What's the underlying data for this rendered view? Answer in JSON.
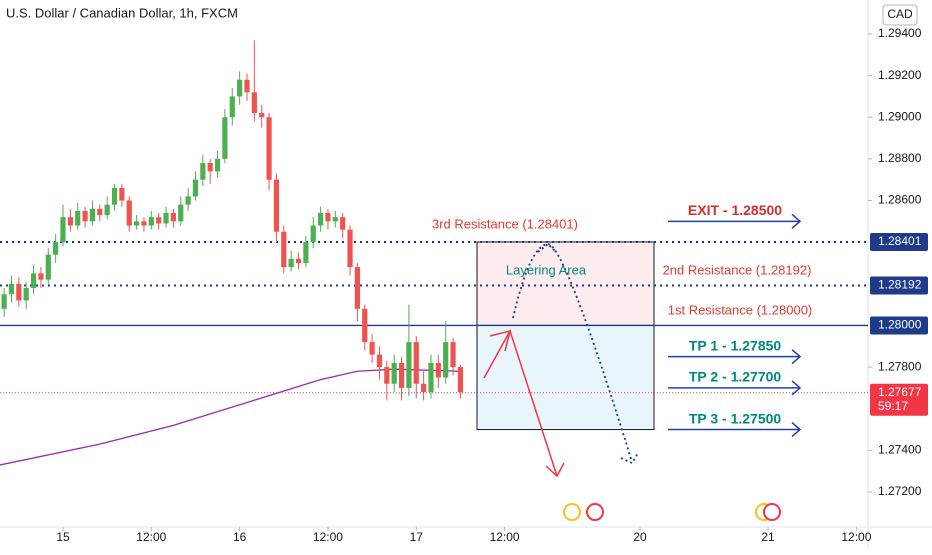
{
  "chart_data": {
    "type": "candlestick",
    "title": "U.S. Dollar / Canadian Dollar, 1h, FXCM",
    "currency": "CAD",
    "up_color": "#4caf50",
    "down_color": "#ef5350",
    "xlim": [
      -8.56,
      109.38
    ],
    "ylim": [
      1.27032,
      1.29563
    ],
    "xticks": [
      {
        "value": 0,
        "label": "15"
      },
      {
        "value": 12,
        "label": "12:00"
      },
      {
        "value": 24,
        "label": "16"
      },
      {
        "value": 36,
        "label": "12:00"
      },
      {
        "value": 48,
        "label": "17"
      },
      {
        "value": 60,
        "label": "12:00"
      },
      {
        "value": 78.4,
        "label": "20"
      },
      {
        "value": 95.8,
        "label": "21"
      },
      {
        "value": 107.8,
        "label": "12:00"
      }
    ],
    "yticks": [
      {
        "value": 1.272,
        "label": "1.27200"
      },
      {
        "value": 1.274,
        "label": "1.27400"
      },
      {
        "value": 1.278,
        "label": "1.27800"
      },
      {
        "value": 1.286,
        "label": "1.28600"
      },
      {
        "value": 1.288,
        "label": "1.28800"
      },
      {
        "value": 1.29,
        "label": "1.29000"
      },
      {
        "value": 1.292,
        "label": "1.29200"
      },
      {
        "value": 1.294,
        "label": "1.29400"
      }
    ],
    "x": [
      -8,
      -7,
      -6,
      -5,
      -4,
      -3,
      -2,
      -1,
      0,
      1,
      2,
      3,
      4,
      5,
      6,
      7,
      8,
      9,
      10,
      11,
      12,
      13,
      14,
      15,
      16,
      17,
      18,
      19,
      20,
      21,
      22,
      23,
      24,
      25,
      26,
      27,
      28,
      29,
      30,
      31,
      32,
      33,
      34,
      35,
      36,
      37,
      38,
      39,
      40,
      41,
      42,
      43,
      44,
      45,
      46,
      47,
      48,
      49,
      50,
      51,
      52,
      53,
      54
    ],
    "open": [
      1.2808,
      1.2815,
      1.282,
      1.2812,
      1.2818,
      1.2825,
      1.2822,
      1.2834,
      1.284,
      1.2852,
      1.2848,
      1.2855,
      1.285,
      1.2856,
      1.2853,
      1.2858,
      1.2866,
      1.286,
      1.2848,
      1.285,
      1.2848,
      1.2852,
      1.2849,
      1.2854,
      1.285,
      1.2858,
      1.2862,
      1.287,
      1.2878,
      1.2874,
      1.288,
      1.29,
      1.291,
      1.2918,
      1.2912,
      1.2902,
      1.29,
      1.287,
      1.2845,
      1.2828,
      1.2832,
      1.283,
      1.284,
      1.2848,
      1.2854,
      1.285,
      1.2852,
      1.2846,
      1.2828,
      1.2808,
      1.2792,
      1.2786,
      1.278,
      1.2772,
      1.2782,
      1.277,
      1.2792,
      1.2772,
      1.2768,
      1.2782,
      1.2775,
      1.2792,
      1.278
    ],
    "high": [
      1.2818,
      1.2824,
      1.2823,
      1.2821,
      1.2829,
      1.2828,
      1.2837,
      1.2844,
      1.2858,
      1.2856,
      1.2859,
      1.2857,
      1.286,
      1.2858,
      1.2862,
      1.2868,
      1.2868,
      1.2862,
      1.2853,
      1.2852,
      1.2855,
      1.2854,
      1.2857,
      1.2856,
      1.2862,
      1.2866,
      1.2874,
      1.2882,
      1.288,
      1.2884,
      1.2904,
      1.2914,
      1.2922,
      1.2921,
      1.2937,
      1.2906,
      1.2902,
      1.2873,
      1.2848,
      1.2836,
      1.2835,
      1.2843,
      1.2852,
      1.2857,
      1.2856,
      1.2855,
      1.2854,
      1.2848,
      1.283,
      1.281,
      1.2796,
      1.279,
      1.2783,
      1.2786,
      1.2785,
      1.281,
      1.2795,
      1.2778,
      1.2786,
      1.2786,
      1.2802,
      1.2794,
      1.2781
    ],
    "low": [
      1.2804,
      1.2811,
      1.2809,
      1.2808,
      1.2815,
      1.2818,
      1.282,
      1.283,
      1.2838,
      1.2845,
      1.2846,
      1.2847,
      1.2848,
      1.285,
      1.2851,
      1.2855,
      1.2857,
      1.2845,
      1.2846,
      1.2845,
      1.2846,
      1.2846,
      1.2847,
      1.2847,
      1.2848,
      1.2855,
      1.286,
      1.2867,
      1.2868,
      1.2871,
      1.2878,
      1.2896,
      1.2906,
      1.2908,
      1.2898,
      1.2895,
      1.2865,
      1.284,
      1.2825,
      1.2826,
      1.2827,
      1.2828,
      1.2837,
      1.2845,
      1.2846,
      1.2847,
      1.2842,
      1.2824,
      1.2802,
      1.2788,
      1.2782,
      1.2774,
      1.2764,
      1.2768,
      1.2764,
      1.2766,
      1.2765,
      1.2764,
      1.2765,
      1.277,
      1.2772,
      1.2776,
      1.2765
    ],
    "close": [
      1.2815,
      1.282,
      1.2812,
      1.2818,
      1.2825,
      1.2822,
      1.2834,
      1.284,
      1.2852,
      1.2848,
      1.2855,
      1.285,
      1.2856,
      1.2853,
      1.2858,
      1.2866,
      1.286,
      1.2848,
      1.285,
      1.2848,
      1.2852,
      1.2849,
      1.2854,
      1.285,
      1.2858,
      1.2862,
      1.287,
      1.2878,
      1.2874,
      1.288,
      1.29,
      1.291,
      1.2918,
      1.2912,
      1.2902,
      1.29,
      1.287,
      1.2845,
      1.2828,
      1.2832,
      1.283,
      1.284,
      1.2848,
      1.2854,
      1.285,
      1.2852,
      1.2846,
      1.2828,
      1.2808,
      1.2792,
      1.2786,
      1.278,
      1.2772,
      1.2782,
      1.277,
      1.2792,
      1.2772,
      1.2768,
      1.2782,
      1.2775,
      1.2792,
      1.278,
      1.2768
    ],
    "ma": {
      "color": "#9c27b0",
      "x": [
        -8.56,
        5,
        15,
        25,
        35,
        40,
        45,
        54
      ],
      "values": [
        1.2733,
        1.2743,
        1.2752,
        1.2763,
        1.2774,
        1.2778,
        1.2779,
        1.2778
      ]
    },
    "levels": [
      {
        "value": 1.28401,
        "label": "1.28401",
        "style": "dotted",
        "color": "#1e3a8a"
      },
      {
        "value": 1.28192,
        "label": "1.28192",
        "style": "dotted",
        "color": "#1e3a8a"
      },
      {
        "value": 1.28,
        "label": "1.28000",
        "style": "solid",
        "color": "#1e3a8a"
      }
    ],
    "current_price": {
      "value": 1.27677,
      "label": "1.27677",
      "countdown": "59:17",
      "color": "#f23645"
    },
    "annotations": {
      "third_resistance": "3rd Resistance (1.28401)",
      "second_resistance": "2nd Resistance (1.28192)",
      "first_resistance": "1st Resistance (1.28000)",
      "layering": "Layering Area"
    },
    "targets": [
      {
        "label": "EXIT - 1.28500",
        "value": 1.285,
        "color": "#d32f2f"
      },
      {
        "label": "TP 1 - 1.27850",
        "value": 1.2785,
        "color": "#00897b"
      },
      {
        "label": "TP 2 - 1.27700",
        "value": 1.277,
        "color": "#00897b"
      },
      {
        "label": "TP 3 - 1.27500",
        "value": 1.275,
        "color": "#00897b"
      }
    ],
    "zones": [
      {
        "top": 1.28401,
        "bottom": 1.28,
        "color": "#fdecee"
      },
      {
        "top": 1.28,
        "bottom": 1.275,
        "color": "#e8f6fb"
      }
    ]
  }
}
